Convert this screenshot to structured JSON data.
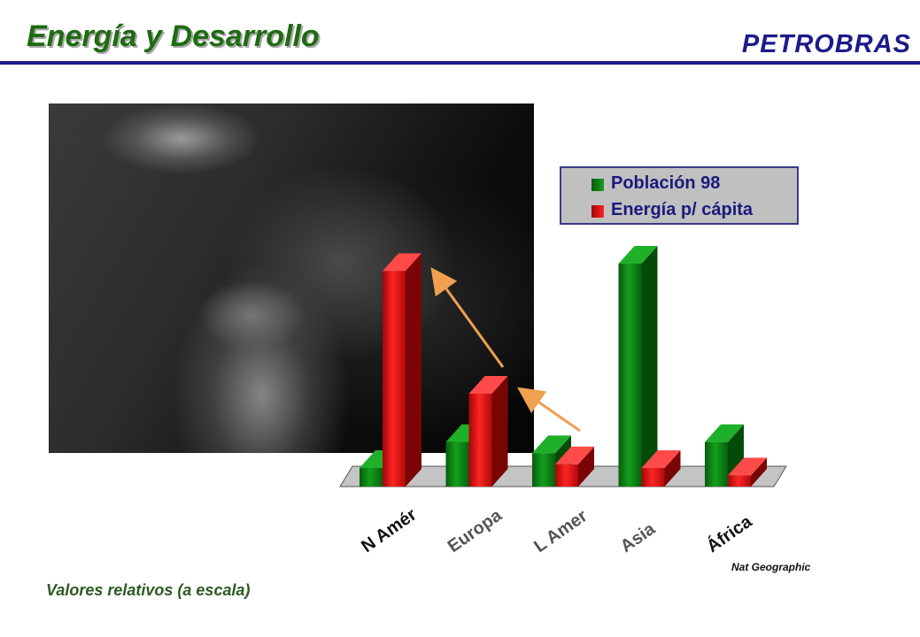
{
  "slide": {
    "title": "Energía y Desarrollo",
    "brand": "PETROBRAS",
    "footnote": "Valores relativos (a escala)",
    "source": "Nat Geographic"
  },
  "colors": {
    "poblacion": "#0e7a14",
    "energia": "#e11212",
    "accent_rule": "#1c1c86",
    "arrow": "#f0a050"
  },
  "chart_data": {
    "type": "bar",
    "categories": [
      "N Amér",
      "Europa",
      "L Amer",
      "Asia",
      "África"
    ],
    "series": [
      {
        "name": "Población 98",
        "values": [
          5,
          12,
          9,
          60,
          12
        ]
      },
      {
        "name": "Energía p/ cápita",
        "values": [
          58,
          25,
          6,
          5,
          3
        ]
      }
    ],
    "ylim": [
      0,
      65
    ],
    "legend": {
      "position": "top-right"
    }
  }
}
